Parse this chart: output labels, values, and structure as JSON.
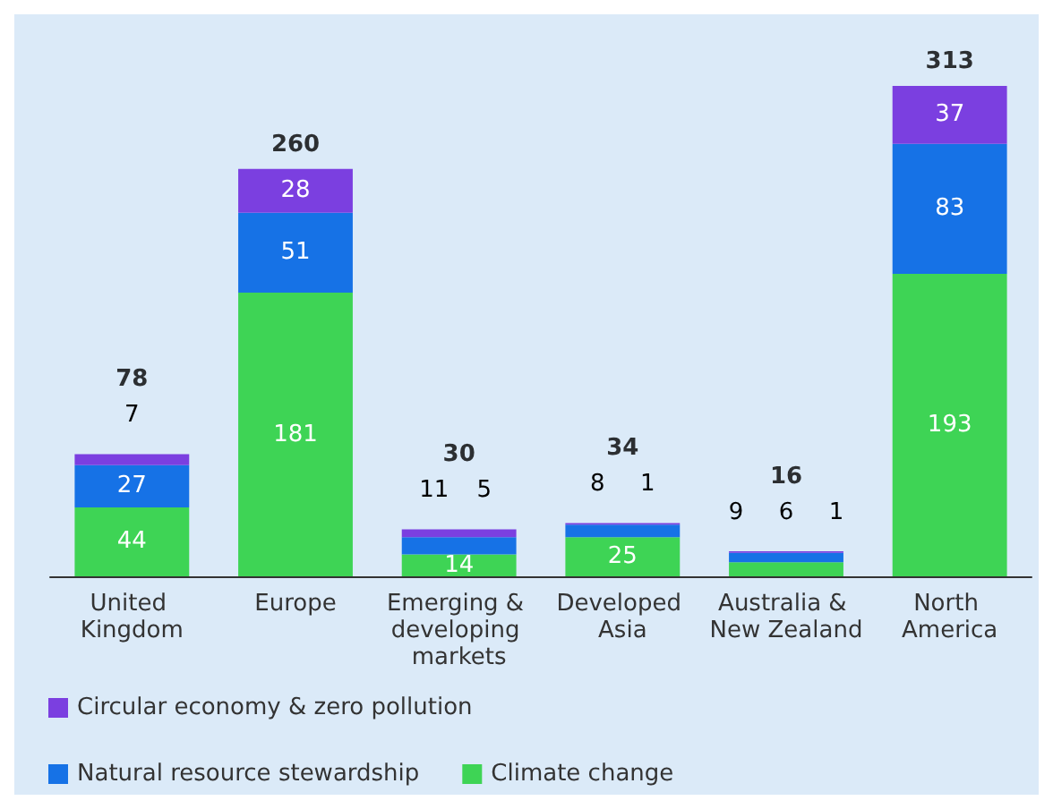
{
  "chart_data": {
    "type": "bar",
    "stacked": true,
    "data_labels": true,
    "legend": "bottom left",
    "categories": [
      "United Kingdom",
      "Europe",
      "Emerging & developing markets",
      "Developed Asia",
      "Australia & New Zealand",
      "North America"
    ],
    "series": [
      {
        "name": "Climate change",
        "color": "#3ed455",
        "values": [
          44,
          181,
          14,
          25,
          9,
          193
        ]
      },
      {
        "name": "Natural resource stewardship",
        "color": "#1672e6",
        "values": [
          27,
          51,
          11,
          8,
          6,
          83
        ]
      },
      {
        "name": "Circular economy & zero pollution",
        "color": "#7b3fe0",
        "values": [
          7,
          28,
          5,
          1,
          1,
          37
        ]
      }
    ],
    "totals": [
      "78",
      "260",
      "30",
      "34",
      "16",
      "313"
    ]
  }
}
